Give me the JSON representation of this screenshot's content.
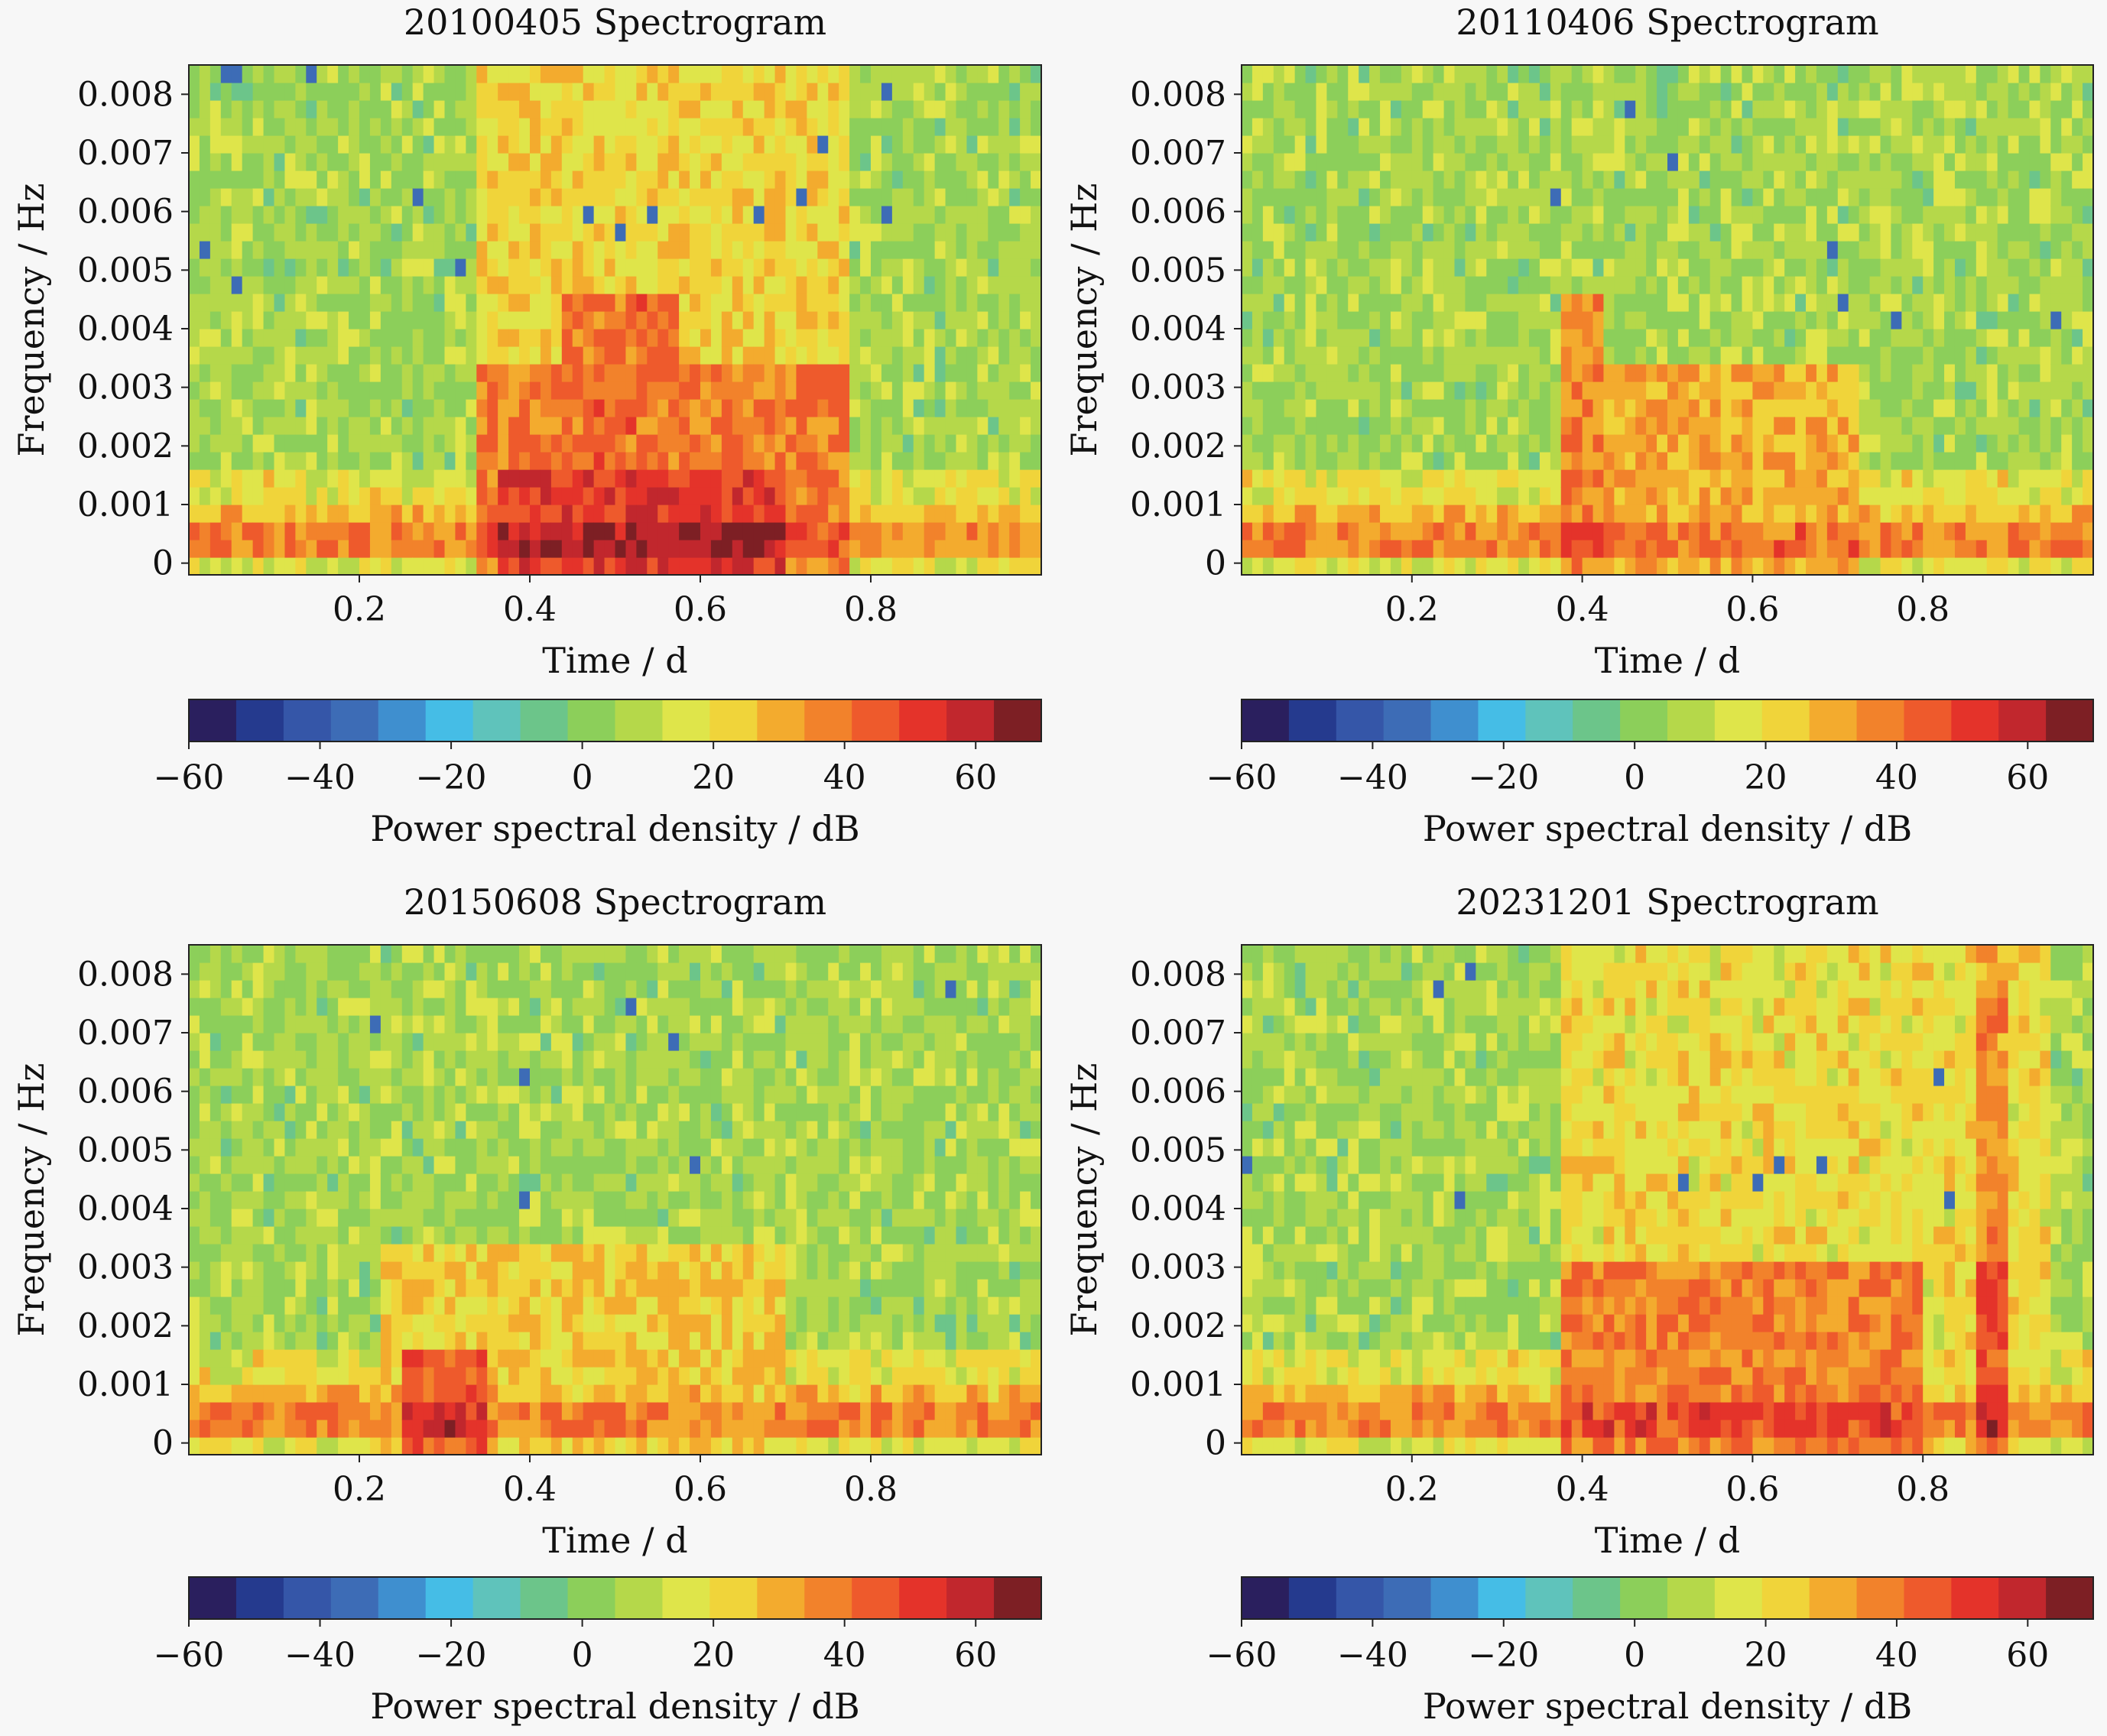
{
  "figure": {
    "background": "#f7f7f7",
    "colormap": [
      "#2a1f5e",
      "#253a8e",
      "#3556a8",
      "#3d6cb6",
      "#3f8fcf",
      "#45bde6",
      "#5fc3bb",
      "#6cc58a",
      "#8ccf5a",
      "#b5d84a",
      "#dfe54a",
      "#f0d43a",
      "#f3ab2e",
      "#f2822b",
      "#ee5a2c",
      "#e4332a",
      "#c1272d",
      "#7d1f24"
    ]
  },
  "chart_data": [
    {
      "type": "heatmap",
      "title": "20100405 Spectrogram",
      "xlabel": "Time / d",
      "ylabel": "Frequency / Hz",
      "xticks": [
        0.2,
        0.4,
        0.6,
        0.8
      ],
      "xtick_labels": [
        "0.2",
        "0.4",
        "0.6",
        "0.8"
      ],
      "yticks": [
        0,
        0.001,
        0.002,
        0.003,
        0.004,
        0.005,
        0.006,
        0.007,
        0.008
      ],
      "ytick_labels": [
        "0",
        "0.001",
        "0.002",
        "0.003",
        "0.004",
        "0.005",
        "0.006",
        "0.007",
        "0.008"
      ],
      "xlim": [
        0.0,
        1.0
      ],
      "ylim": [
        -0.0002,
        0.0085
      ],
      "zlim": [
        -60,
        70
      ],
      "time_bins": 80,
      "freq_bins": 29,
      "regions": [
        {
          "t0": 0.34,
          "t1": 0.78,
          "fmax": 0.0085,
          "level": 22
        },
        {
          "t0": 0.34,
          "t1": 0.78,
          "fmax": 0.0035,
          "level": 38
        },
        {
          "t0": 0.36,
          "t1": 0.7,
          "fmax": 0.0015,
          "level": 52
        },
        {
          "t0": 0.44,
          "t1": 0.58,
          "fmax": 0.0045,
          "level": 40
        }
      ],
      "colorbar": {
        "label": "Power spectral density / dB",
        "ticks": [
          -60,
          -40,
          -20,
          0,
          20,
          40,
          60
        ],
        "tick_labels": [
          "−60",
          "−40",
          "−20",
          "0",
          "20",
          "40",
          "60"
        ]
      }
    },
    {
      "type": "heatmap",
      "title": "20110406 Spectrogram",
      "xlabel": "Time / d",
      "ylabel": "Frequency / Hz",
      "xticks": [
        0.2,
        0.4,
        0.6,
        0.8
      ],
      "xtick_labels": [
        "0.2",
        "0.4",
        "0.6",
        "0.8"
      ],
      "yticks": [
        0,
        0.001,
        0.002,
        0.003,
        0.004,
        0.005,
        0.006,
        0.007,
        0.008
      ],
      "ytick_labels": [
        "0",
        "0.001",
        "0.002",
        "0.003",
        "0.004",
        "0.005",
        "0.006",
        "0.007",
        "0.008"
      ],
      "xlim": [
        0.0,
        1.0
      ],
      "ylim": [
        -0.0002,
        0.0085
      ],
      "zlim": [
        -60,
        70
      ],
      "time_bins": 80,
      "freq_bins": 29,
      "regions": [
        {
          "t0": 0.38,
          "t1": 0.72,
          "fmax": 0.0035,
          "level": 30
        },
        {
          "t0": 0.38,
          "t1": 0.42,
          "fmax": 0.0045,
          "level": 36
        }
      ],
      "colorbar": {
        "label": "Power spectral density / dB",
        "ticks": [
          -60,
          -40,
          -20,
          0,
          20,
          40,
          60
        ],
        "tick_labels": [
          "−60",
          "−40",
          "−20",
          "0",
          "20",
          "40",
          "60"
        ]
      }
    },
    {
      "type": "heatmap",
      "title": "20150608 Spectrogram",
      "xlabel": "Time / d",
      "ylabel": "Frequency / Hz",
      "xticks": [
        0.2,
        0.4,
        0.6,
        0.8
      ],
      "xtick_labels": [
        "0.2",
        "0.4",
        "0.6",
        "0.8"
      ],
      "yticks": [
        0,
        0.001,
        0.002,
        0.003,
        0.004,
        0.005,
        0.006,
        0.007,
        0.008
      ],
      "ytick_labels": [
        "0",
        "0.001",
        "0.002",
        "0.003",
        "0.004",
        "0.005",
        "0.006",
        "0.007",
        "0.008"
      ],
      "xlim": [
        0.0,
        1.0
      ],
      "ylim": [
        -0.0002,
        0.0085
      ],
      "zlim": [
        -60,
        70
      ],
      "time_bins": 80,
      "freq_bins": 29,
      "regions": [
        {
          "t0": 0.22,
          "t1": 0.7,
          "fmax": 0.0035,
          "level": 24
        },
        {
          "t0": 0.25,
          "t1": 0.35,
          "fmax": 0.0015,
          "level": 44
        }
      ],
      "colorbar": {
        "label": "Power spectral density / dB",
        "ticks": [
          -60,
          -40,
          -20,
          0,
          20,
          40,
          60
        ],
        "tick_labels": [
          "−60",
          "−40",
          "−20",
          "0",
          "20",
          "40",
          "60"
        ]
      }
    },
    {
      "type": "heatmap",
      "title": "20231201 Spectrogram",
      "xlabel": "Time / d",
      "ylabel": "Frequency / Hz",
      "xticks": [
        0.2,
        0.4,
        0.6,
        0.8
      ],
      "xtick_labels": [
        "0.2",
        "0.4",
        "0.6",
        "0.8"
      ],
      "yticks": [
        0,
        0.001,
        0.002,
        0.003,
        0.004,
        0.005,
        0.006,
        0.007,
        0.008
      ],
      "ytick_labels": [
        "0",
        "0.001",
        "0.002",
        "0.003",
        "0.004",
        "0.005",
        "0.006",
        "0.007",
        "0.008"
      ],
      "xlim": [
        0.0,
        1.0
      ],
      "ylim": [
        -0.0002,
        0.0085
      ],
      "zlim": [
        -60,
        70
      ],
      "time_bins": 80,
      "freq_bins": 29,
      "regions": [
        {
          "t0": 0.38,
          "t1": 0.95,
          "fmax": 0.0085,
          "level": 20
        },
        {
          "t0": 0.38,
          "t1": 0.8,
          "fmax": 0.003,
          "level": 38
        },
        {
          "t0": 0.86,
          "t1": 0.9,
          "fmax": 0.0085,
          "level": 35
        },
        {
          "t0": 0.86,
          "t1": 0.9,
          "fmax": 0.003,
          "level": 46
        }
      ],
      "colorbar": {
        "label": "Power spectral density / dB",
        "ticks": [
          -60,
          -40,
          -20,
          0,
          20,
          40,
          60
        ],
        "tick_labels": [
          "−60",
          "−40",
          "−20",
          "0",
          "20",
          "40",
          "60"
        ]
      }
    }
  ]
}
